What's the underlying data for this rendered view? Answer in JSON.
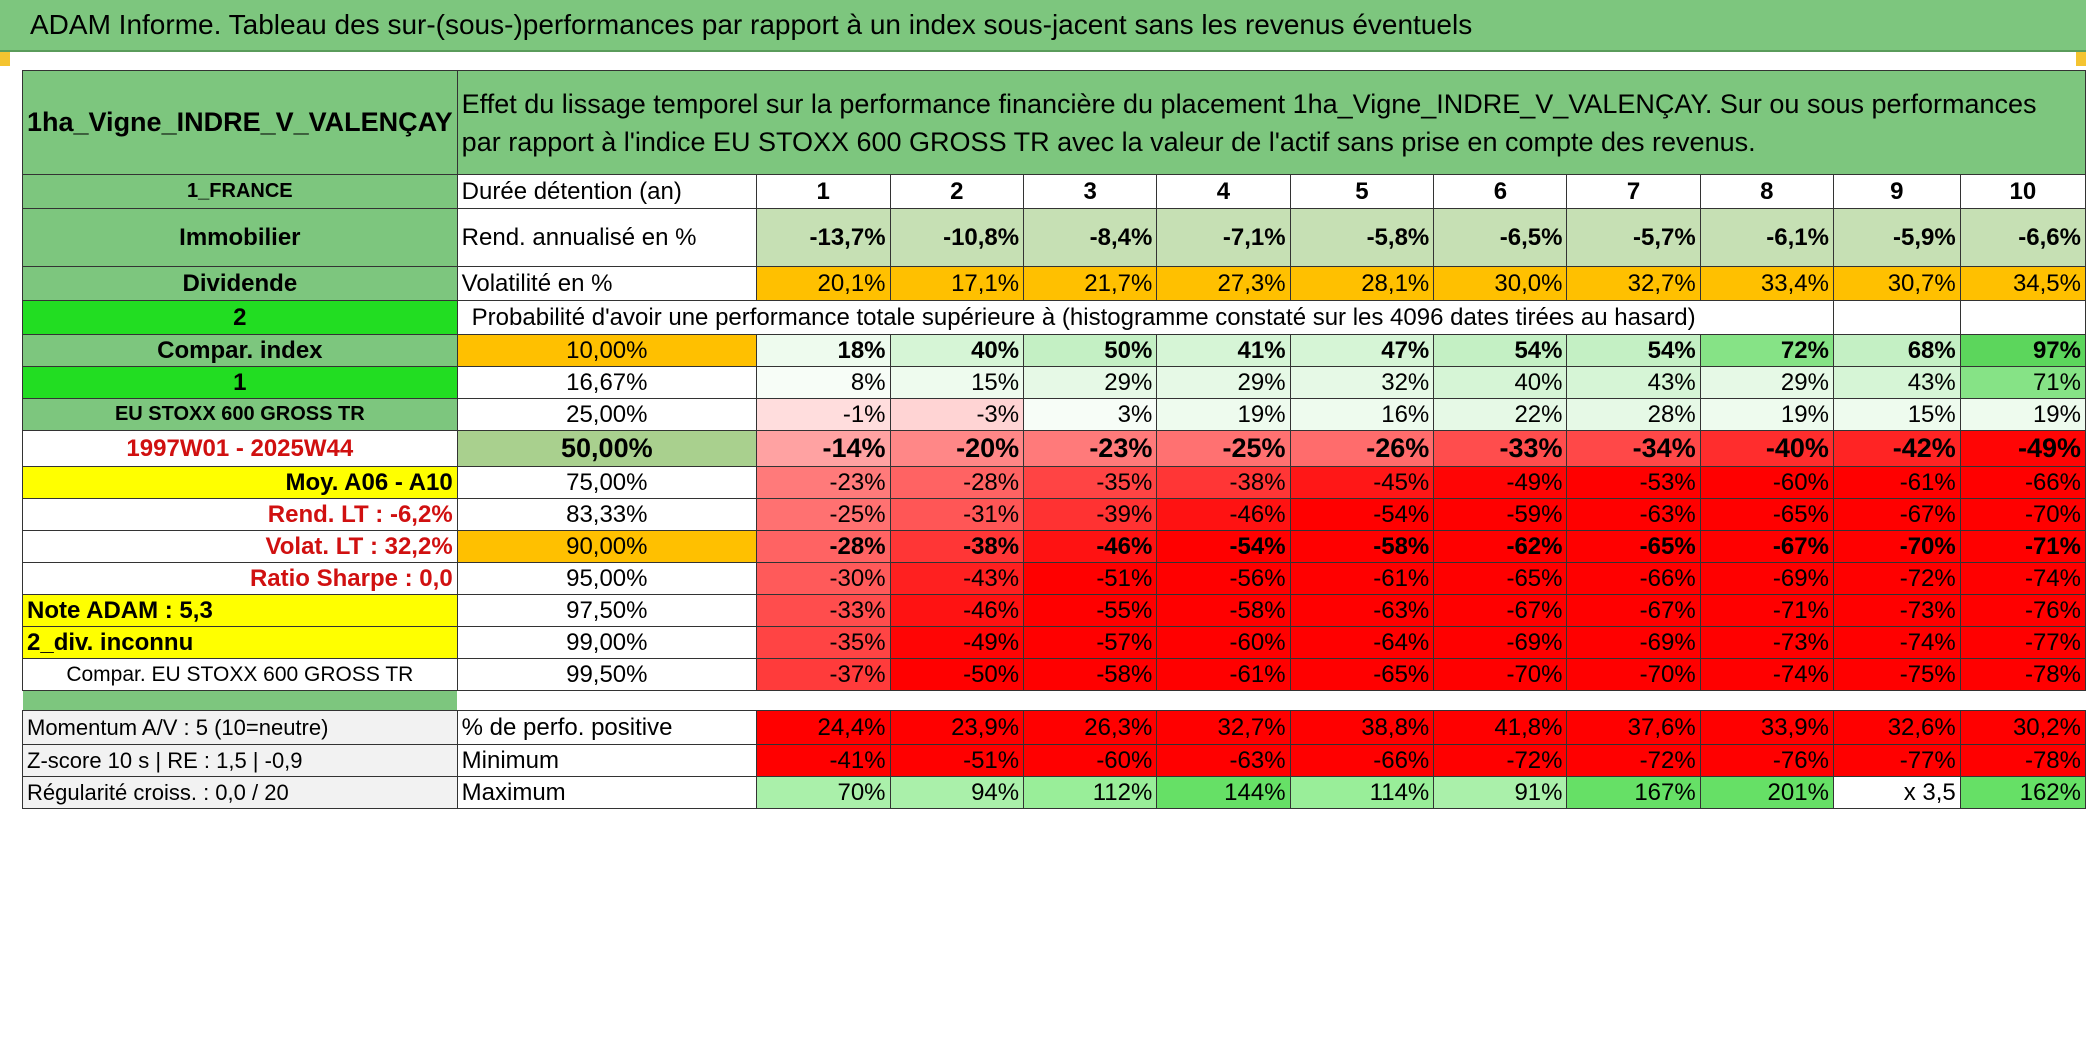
{
  "title": "ADAM Informe. Tableau des sur-(sous-)performances par rapport à un index sous-jacent sans les revenus éventuels",
  "header": {
    "asset_name": "1ha_Vigne_INDRE_V_VALENÇAY",
    "description": "Effet du lissage temporel sur la performance financière du placement 1ha_Vigne_INDRE_V_VALENÇAY. Sur ou sous performances par rapport à l'indice EU STOXX 600 GROSS TR avec la valeur de l'actif sans prise en compte des revenus."
  },
  "left": {
    "country": "1_FRANCE",
    "category": "Immobilier",
    "dividend": "Dividende",
    "count": "2",
    "compar_index": "Compar. index",
    "index_num": "1",
    "index_name": "EU STOXX 600 GROSS TR",
    "period": "1997W01 - 2025W44",
    "moy": "Moy. A06 - A10",
    "rend_lt": "Rend. LT :    -6,2%",
    "volat_lt": "Volat. LT :    32,2%",
    "sharpe": "Ratio Sharpe :    0,0",
    "note": "Note ADAM : 5,3",
    "div": "2_div. inconnu",
    "compar_name": "Compar. EU STOXX 600 GROSS TR",
    "momentum": "Momentum A/V : 5 (10=neutre)",
    "zscore": "Z-score 10 s | RE : 1,5 | -0,9",
    "regul": "Régularité croiss. : 0,0 / 20"
  },
  "duration_label": "Durée détention (an)",
  "years": [
    "1",
    "2",
    "3",
    "4",
    "5",
    "6",
    "7",
    "8",
    "9",
    "10"
  ],
  "rend_label": "Rend. annualisé en %",
  "rend": [
    "-13,7%",
    "-10,8%",
    "-8,4%",
    "-7,1%",
    "-5,8%",
    "-6,5%",
    "-5,7%",
    "-6,1%",
    "-5,9%",
    "-6,6%"
  ],
  "vol_label": "Volatilité en %",
  "vol": [
    "20,1%",
    "17,1%",
    "21,7%",
    "27,3%",
    "28,1%",
    "30,0%",
    "32,7%",
    "33,4%",
    "30,7%",
    "34,5%"
  ],
  "prob_label": "Probabilité d'avoir une performance totale supérieure à (histogramme constaté sur les 4096 dates tirées au hasard)",
  "pct_rows": [
    {
      "p": "10,00%",
      "v": [
        "18%",
        "40%",
        "50%",
        "41%",
        "47%",
        "54%",
        "54%",
        "72%",
        "68%",
        "97%"
      ]
    },
    {
      "p": "16,67%",
      "v": [
        "8%",
        "15%",
        "29%",
        "29%",
        "32%",
        "40%",
        "43%",
        "29%",
        "43%",
        "71%"
      ]
    },
    {
      "p": "25,00%",
      "v": [
        "-1%",
        "-3%",
        "3%",
        "19%",
        "16%",
        "22%",
        "28%",
        "19%",
        "15%",
        "19%"
      ]
    },
    {
      "p": "50,00%",
      "v": [
        "-14%",
        "-20%",
        "-23%",
        "-25%",
        "-26%",
        "-33%",
        "-34%",
        "-40%",
        "-42%",
        "-49%"
      ]
    },
    {
      "p": "75,00%",
      "v": [
        "-23%",
        "-28%",
        "-35%",
        "-38%",
        "-45%",
        "-49%",
        "-53%",
        "-60%",
        "-61%",
        "-66%"
      ]
    },
    {
      "p": "83,33%",
      "v": [
        "-25%",
        "-31%",
        "-39%",
        "-46%",
        "-54%",
        "-59%",
        "-63%",
        "-65%",
        "-67%",
        "-70%"
      ]
    },
    {
      "p": "90,00%",
      "v": [
        "-28%",
        "-38%",
        "-46%",
        "-54%",
        "-58%",
        "-62%",
        "-65%",
        "-67%",
        "-70%",
        "-71%"
      ]
    },
    {
      "p": "95,00%",
      "v": [
        "-30%",
        "-43%",
        "-51%",
        "-56%",
        "-61%",
        "-65%",
        "-66%",
        "-69%",
        "-72%",
        "-74%"
      ]
    },
    {
      "p": "97,50%",
      "v": [
        "-33%",
        "-46%",
        "-55%",
        "-58%",
        "-63%",
        "-67%",
        "-67%",
        "-71%",
        "-73%",
        "-76%"
      ]
    },
    {
      "p": "99,00%",
      "v": [
        "-35%",
        "-49%",
        "-57%",
        "-60%",
        "-64%",
        "-69%",
        "-69%",
        "-73%",
        "-74%",
        "-77%"
      ]
    },
    {
      "p": "99,50%",
      "v": [
        "-37%",
        "-50%",
        "-58%",
        "-61%",
        "-65%",
        "-70%",
        "-70%",
        "-74%",
        "-75%",
        "-78%"
      ]
    }
  ],
  "pos_label": "% de perfo. positive",
  "pos": [
    "24,4%",
    "23,9%",
    "26,3%",
    "32,7%",
    "38,8%",
    "41,8%",
    "37,6%",
    "33,9%",
    "32,6%",
    "30,2%"
  ],
  "min_label": "Minimum",
  "min": [
    "-41%",
    "-51%",
    "-60%",
    "-63%",
    "-66%",
    "-72%",
    "-72%",
    "-76%",
    "-77%",
    "-78%"
  ],
  "max_label": "Maximum",
  "max": [
    "70%",
    "94%",
    "112%",
    "144%",
    "114%",
    "91%",
    "167%",
    "201%",
    "x 3,5",
    "162%"
  ],
  "colors": {
    "green_label": "#7dc67e",
    "bright_green": "#22dd22",
    "orange": "#ffc000",
    "yellow": "#ffff00",
    "red": "#ff0000",
    "text_red": "#d01010"
  }
}
